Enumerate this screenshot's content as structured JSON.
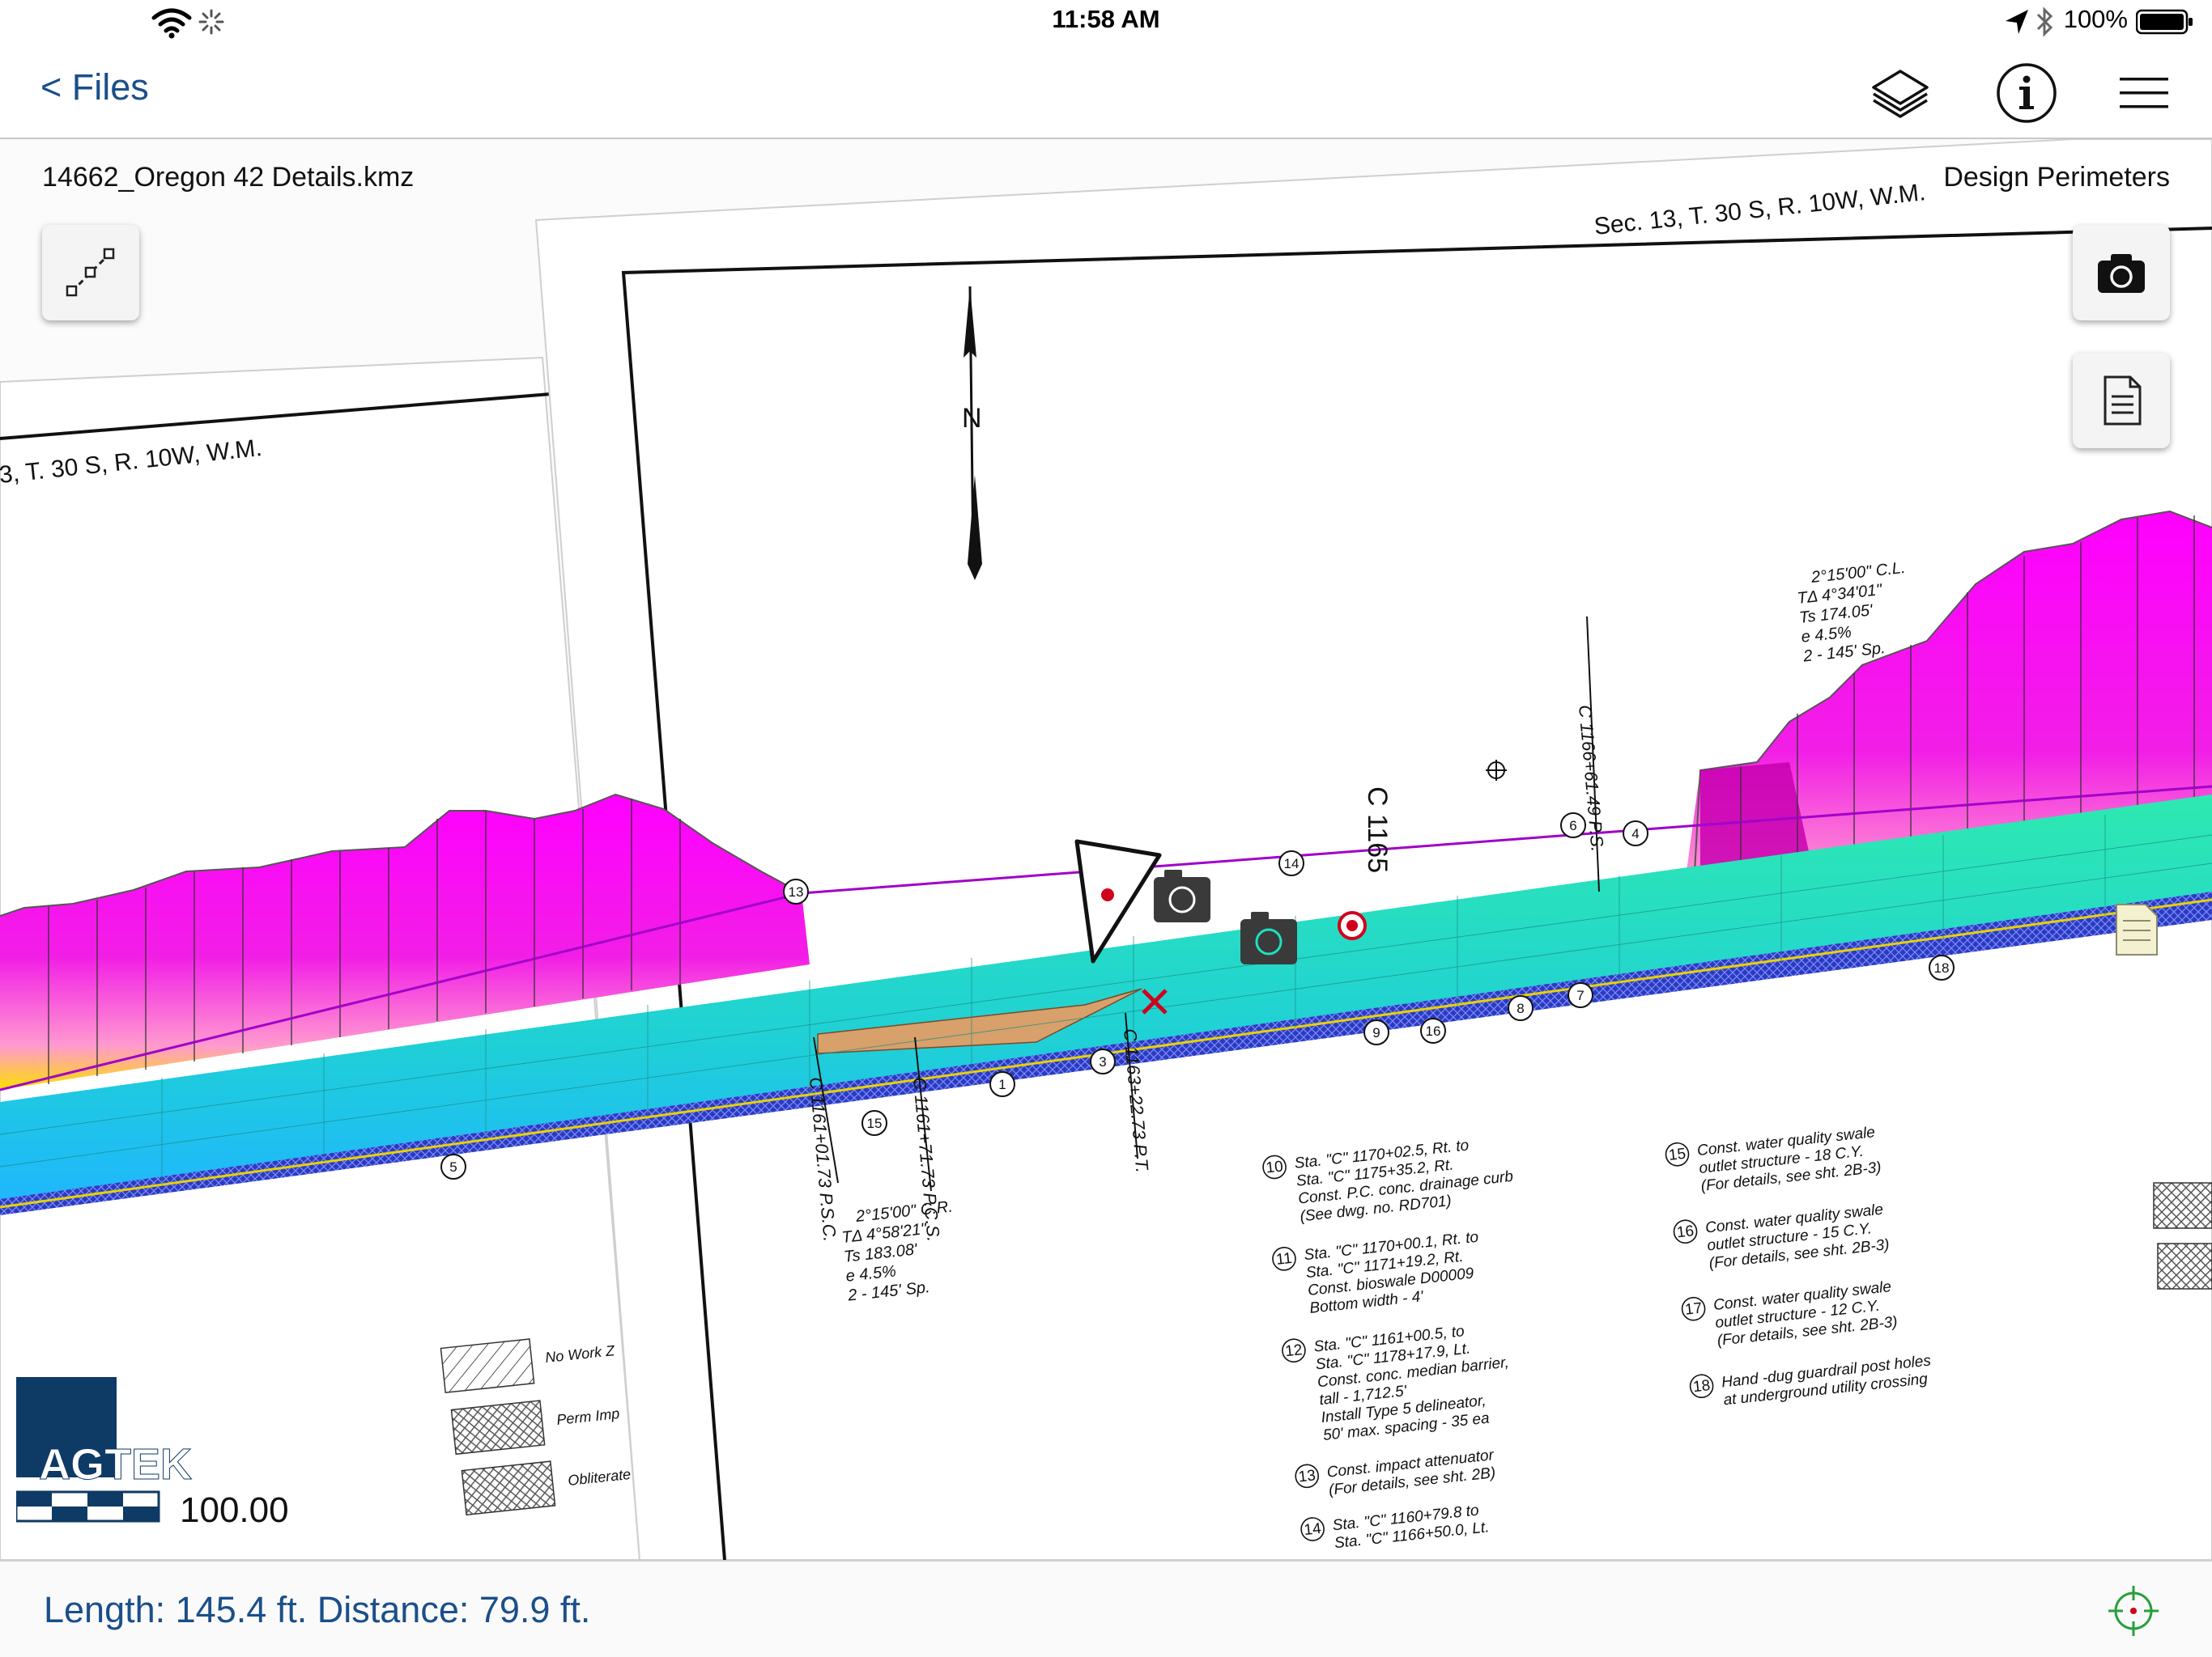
{
  "status_bar": {
    "time": "11:58 AM",
    "battery_percent": "100%",
    "icons": [
      "wifi-icon",
      "spinner-icon",
      "location-arrow-icon",
      "bluetooth-icon",
      "battery-icon"
    ]
  },
  "nav": {
    "back_label": "< Files",
    "buttons": [
      "layers-icon",
      "info-icon",
      "menu-icon"
    ]
  },
  "map": {
    "file_name": "14662_Oregon 42 Details.kmz",
    "layer_name": "Design Perimeters",
    "scale_value": "100.00",
    "logo_text": "AGTEK",
    "plan_labels": {
      "sec_right": "Sec. 13, T. 30 S, R. 10W, W.M.",
      "sec_left": "3, T. 30 S, R. 10W, W.M.",
      "north": "N",
      "station_c1165": "C 1165",
      "station_psc": "C 1161+01.73 P.S.C.",
      "station_pcs": "C 1161+71.73 P.C.S.",
      "station_pt": "C 1163+22.73 P.T.",
      "station_ps": "C 1166+61.49 P.S.",
      "curve_left": [
        "2°15'00\" C.R.",
        "TΔ 4°58'21\"",
        "Ts 183.08'",
        "e 4.5%",
        "2 - 145' Sp."
      ],
      "curve_right": [
        "2°15'00\" C.L.",
        "TΔ 4°34'01\"",
        "Ts 174.05'",
        "e 4.5%",
        "2 - 145' Sp."
      ],
      "legend": [
        "No Work Z",
        "Perm Imp",
        "Obliterate"
      ],
      "callouts": [
        "13",
        "14",
        "15",
        "1",
        "3",
        "4",
        "5",
        "6",
        "7",
        "8",
        "9",
        "16",
        "18"
      ]
    },
    "notes_left": [
      [
        "10",
        "Sta. \"C\" 1170+02.5, Rt. to",
        "Sta. \"C\" 1175+35.2, Rt.",
        "Const. P.C. conc. drainage curb",
        "(See dwg. no. RD701)"
      ],
      [
        "11",
        "Sta. \"C\" 1170+00.1, Rt. to",
        "Sta. \"C\" 1171+19.2, Rt.",
        "Const. bioswale D00009",
        "Bottom width - 4'"
      ],
      [
        "12",
        "Sta. \"C\" 1161+00.5, to",
        "Sta. \"C\" 1178+17.9, Lt.",
        "Const. conc. median barrier,",
        "tall - 1,712.5'",
        "Install Type 5 delineator,",
        "50' max. spacing - 35 ea"
      ],
      [
        "13",
        "Const. impact attenuator",
        "(For details, see sht. 2B)"
      ],
      [
        "14",
        "Sta. \"C\" 1160+79.8 to",
        "Sta. \"C\" 1166+50.0, Lt."
      ]
    ],
    "notes_right": [
      [
        "15",
        "Const. water quality swale",
        "outlet structure - 18 C.Y.",
        "(For details, see sht. 2B-3)"
      ],
      [
        "16",
        "Const. water quality swale",
        "outlet structure - 15 C.Y.",
        "(For details, see sht. 2B-3)"
      ],
      [
        "17",
        "Const. water quality swale",
        "outlet structure - 12 C.Y.",
        "(For details, see sht. 2B-3)"
      ],
      [
        "18",
        "Hand -dug guardrail post holes",
        "at underground utility crossing"
      ]
    ]
  },
  "bottom": {
    "readout": "Length: 145.4 ft.  Distance: 79.9 ft."
  },
  "colors": {
    "accent": "#1a4f8a",
    "cut": "#ff00ff",
    "fill": "#ffe000",
    "road": "#22e0b8",
    "road_blue": "#1fb6ff",
    "deep": "#2b3bc0",
    "logo": "#0e3a66"
  }
}
